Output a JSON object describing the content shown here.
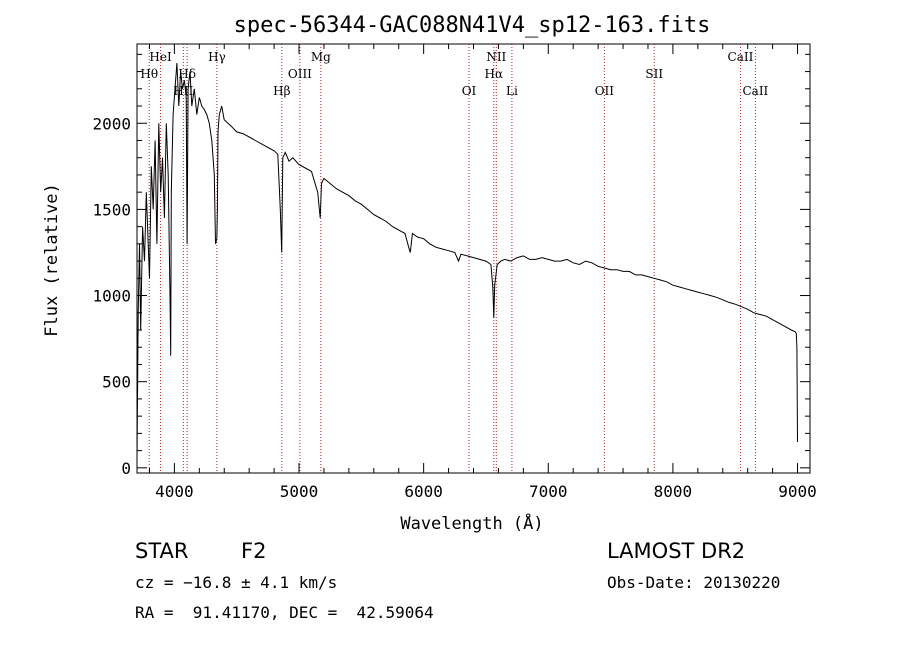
{
  "chart_data": {
    "type": "line",
    "title": "spec-56344-GAC088N41V4_sp12-163.fits",
    "xlabel": "Wavelength (Å)",
    "ylabel": "Flux (relative)",
    "xlim": [
      3700,
      9100
    ],
    "ylim": [
      -30,
      2460
    ],
    "xticks": [
      4000,
      5000,
      6000,
      7000,
      8000,
      9000
    ],
    "yticks": [
      0,
      500,
      1000,
      1500,
      2000
    ],
    "grid": false,
    "series": [
      {
        "x": [
          3700,
          3710,
          3720,
          3730,
          3745,
          3760,
          3775,
          3790,
          3800,
          3815,
          3830,
          3845,
          3860,
          3875,
          3890,
          3905,
          3920,
          3935,
          3950,
          3965,
          3970,
          3975,
          3990,
          4005,
          4020,
          4035,
          4050,
          4065,
          4080,
          4095,
          4102,
          4110,
          4125,
          4140,
          4160,
          4180,
          4200,
          4220,
          4240,
          4260,
          4280,
          4300,
          4320,
          4330,
          4340,
          4345,
          4350,
          4360,
          4380,
          4400,
          4430,
          4460,
          4500,
          4550,
          4600,
          4650,
          4700,
          4750,
          4800,
          4830,
          4850,
          4861,
          4870,
          4890,
          4920,
          4950,
          5000,
          5050,
          5100,
          5150,
          5170,
          5180,
          5200,
          5250,
          5300,
          5350,
          5400,
          5450,
          5500,
          5550,
          5600,
          5650,
          5700,
          5750,
          5800,
          5850,
          5880,
          5893,
          5910,
          5950,
          6000,
          6050,
          6100,
          6150,
          6200,
          6250,
          6280,
          6300,
          6350,
          6400,
          6450,
          6500,
          6540,
          6555,
          6563,
          6570,
          6590,
          6620,
          6650,
          6700,
          6750,
          6800,
          6850,
          6900,
          6950,
          7000,
          7050,
          7100,
          7150,
          7200,
          7250,
          7300,
          7350,
          7400,
          7450,
          7500,
          7550,
          7600,
          7650,
          7700,
          7750,
          7800,
          7850,
          7900,
          7950,
          8000,
          8050,
          8100,
          8150,
          8200,
          8250,
          8300,
          8350,
          8400,
          8450,
          8500,
          8550,
          8600,
          8650,
          8700,
          8750,
          8800,
          8850,
          8900,
          8950,
          8980,
          8990,
          8995,
          9000
        ],
        "y": [
          50,
          900,
          1300,
          800,
          1400,
          1200,
          1600,
          1300,
          1100,
          1750,
          1500,
          1900,
          1300,
          2000,
          1600,
          1800,
          1450,
          2000,
          1700,
          1000,
          650,
          1600,
          2050,
          2200,
          2350,
          2100,
          2300,
          2200,
          2250,
          2150,
          1300,
          2200,
          2300,
          2100,
          2200,
          2050,
          2150,
          2100,
          2080,
          2050,
          2000,
          1900,
          1700,
          1300,
          1330,
          1500,
          1950,
          2050,
          2100,
          2020,
          2000,
          1980,
          1950,
          1940,
          1920,
          1900,
          1880,
          1860,
          1840,
          1820,
          1500,
          1250,
          1800,
          1830,
          1780,
          1800,
          1760,
          1740,
          1720,
          1600,
          1450,
          1650,
          1680,
          1650,
          1620,
          1600,
          1580,
          1550,
          1530,
          1500,
          1470,
          1450,
          1430,
          1400,
          1380,
          1360,
          1280,
          1250,
          1360,
          1340,
          1330,
          1300,
          1280,
          1270,
          1260,
          1250,
          1200,
          1240,
          1230,
          1220,
          1210,
          1200,
          1180,
          1050,
          870,
          1060,
          1180,
          1200,
          1210,
          1200,
          1220,
          1230,
          1210,
          1210,
          1220,
          1210,
          1200,
          1200,
          1210,
          1190,
          1180,
          1200,
          1190,
          1170,
          1160,
          1150,
          1150,
          1140,
          1140,
          1120,
          1120,
          1110,
          1100,
          1090,
          1080,
          1060,
          1050,
          1040,
          1030,
          1020,
          1010,
          1000,
          990,
          975,
          960,
          950,
          935,
          920,
          900,
          890,
          880,
          860,
          840,
          820,
          800,
          790,
          780,
          700,
          150
        ]
      }
    ],
    "line_markers": [
      {
        "label": "Hθ",
        "x": 3798,
        "row": 1
      },
      {
        "label": "HeI",
        "x": 3889,
        "row": 0
      },
      {
        "label": "Hδ",
        "x": 4102,
        "row": 1
      },
      {
        "label": "HII",
        "x": 4072,
        "row": 2
      },
      {
        "label": "Hγ",
        "x": 4341,
        "row": 0
      },
      {
        "label": "Hβ",
        "x": 4862,
        "row": 2
      },
      {
        "label": "OIII",
        "x": 5007,
        "row": 1
      },
      {
        "label": "Mg",
        "x": 5175,
        "row": 0
      },
      {
        "label": "OI",
        "x": 6364,
        "row": 2
      },
      {
        "label": "NII",
        "x": 6583,
        "row": 0
      },
      {
        "label": "Hα",
        "x": 6563,
        "row": 1
      },
      {
        "label": "Li",
        "x": 6708,
        "row": 2
      },
      {
        "label": "OII",
        "x": 7450,
        "row": 2
      },
      {
        "label": "SII",
        "x": 7850,
        "row": 1
      },
      {
        "label": "CaII",
        "x": 8542,
        "row": 0
      },
      {
        "label": "CaII",
        "x": 8662,
        "row": 2
      }
    ],
    "marker_color": "#b22222"
  },
  "footer": {
    "object_class": "STAR",
    "subclass": "F2",
    "survey": "LAMOST DR2",
    "redshift": "cz = −16.8 ± 4.1 km/s",
    "obs_date": "Obs-Date: 20130220",
    "coords": "RA =  91.41170, DEC =  42.59064"
  }
}
